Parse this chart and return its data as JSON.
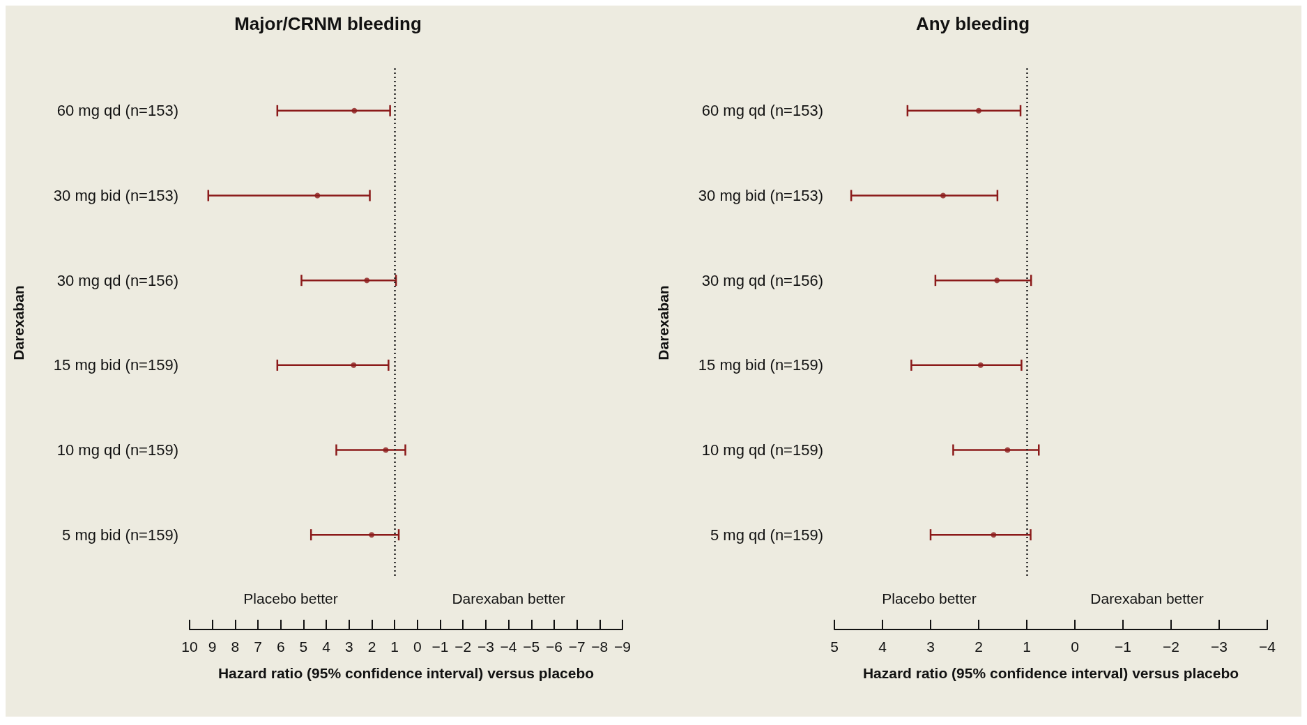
{
  "chart_data": [
    {
      "type": "scatter",
      "orientation": "horizontal",
      "title": "Major/CRNM bleeding",
      "xlabel": "Hazard ratio (95% confidence interval) versus placebo",
      "ylabel": "Darexaban",
      "categories": [
        "60 mg qd (n=153)",
        "30 mg bid (n=153)",
        "30 mg qd (n=156)",
        "15 mg bid (n=159)",
        "10 mg qd (n=159)",
        "5 mg bid (n=159)"
      ],
      "values": [
        2.77,
        4.39,
        2.22,
        2.8,
        1.39,
        2.01
      ],
      "errors": [
        [
          1.2,
          6.15
        ],
        [
          2.09,
          9.18
        ],
        [
          0.94,
          5.09
        ],
        [
          1.27,
          6.15
        ],
        [
          0.53,
          3.56
        ],
        [
          0.82,
          4.67
        ]
      ],
      "color": "#8b1a1a",
      "marker": "circle",
      "xlim": [
        10,
        -9
      ],
      "xticks": [
        10,
        9,
        8,
        7,
        6,
        5,
        4,
        3,
        2,
        1,
        0,
        {
          "value": -1,
          "label": "−1"
        },
        {
          "value": -2,
          "label": "−2"
        },
        {
          "value": -3,
          "label": "−3"
        },
        {
          "value": -4,
          "label": "−4"
        },
        {
          "value": -5,
          "label": "−5"
        },
        {
          "value": -6,
          "label": "−6"
        },
        {
          "value": -7,
          "label": "−7"
        },
        {
          "value": -8,
          "label": "−8"
        },
        {
          "value": -9,
          "label": "−9"
        }
      ],
      "ref_lines": [
        {
          "axis": "x",
          "value": 1,
          "color": "#222222",
          "line_style": "dotted"
        }
      ],
      "annotations": [
        "Placebo better",
        "Darexaban better"
      ],
      "grid": false
    },
    {
      "type": "scatter",
      "orientation": "horizontal",
      "title": "Any bleeding",
      "xlabel": "Hazard ratio (95% confidence interval) versus placebo",
      "ylabel": "Darexaban",
      "categories": [
        "60 mg qd (n=153)",
        "30 mg bid (n=153)",
        "30 mg qd (n=156)",
        "15 mg bid (n=159)",
        "10 mg qd (n=159)",
        "5 mg qd (n=159)"
      ],
      "values": [
        2.0,
        2.74,
        1.62,
        1.96,
        1.4,
        1.69
      ],
      "errors": [
        [
          1.13,
          3.48
        ],
        [
          1.61,
          4.65
        ],
        [
          0.91,
          2.9
        ],
        [
          1.11,
          3.4
        ],
        [
          0.75,
          2.53
        ],
        [
          0.92,
          3.0
        ]
      ],
      "color": "#8b1a1a",
      "marker": "circle",
      "xlim": [
        5,
        -4
      ],
      "xticks": [
        5,
        4,
        3,
        2,
        1,
        0,
        {
          "value": -1,
          "label": "−1"
        },
        {
          "value": -2,
          "label": "−2"
        },
        {
          "value": -3,
          "label": "−3"
        },
        {
          "value": -4,
          "label": "−4"
        }
      ],
      "ref_lines": [
        {
          "axis": "x",
          "value": 1,
          "color": "#222222",
          "line_style": "dotted"
        }
      ],
      "annotations": [
        "Placebo better",
        "Darexaban better"
      ],
      "grid": false
    }
  ]
}
